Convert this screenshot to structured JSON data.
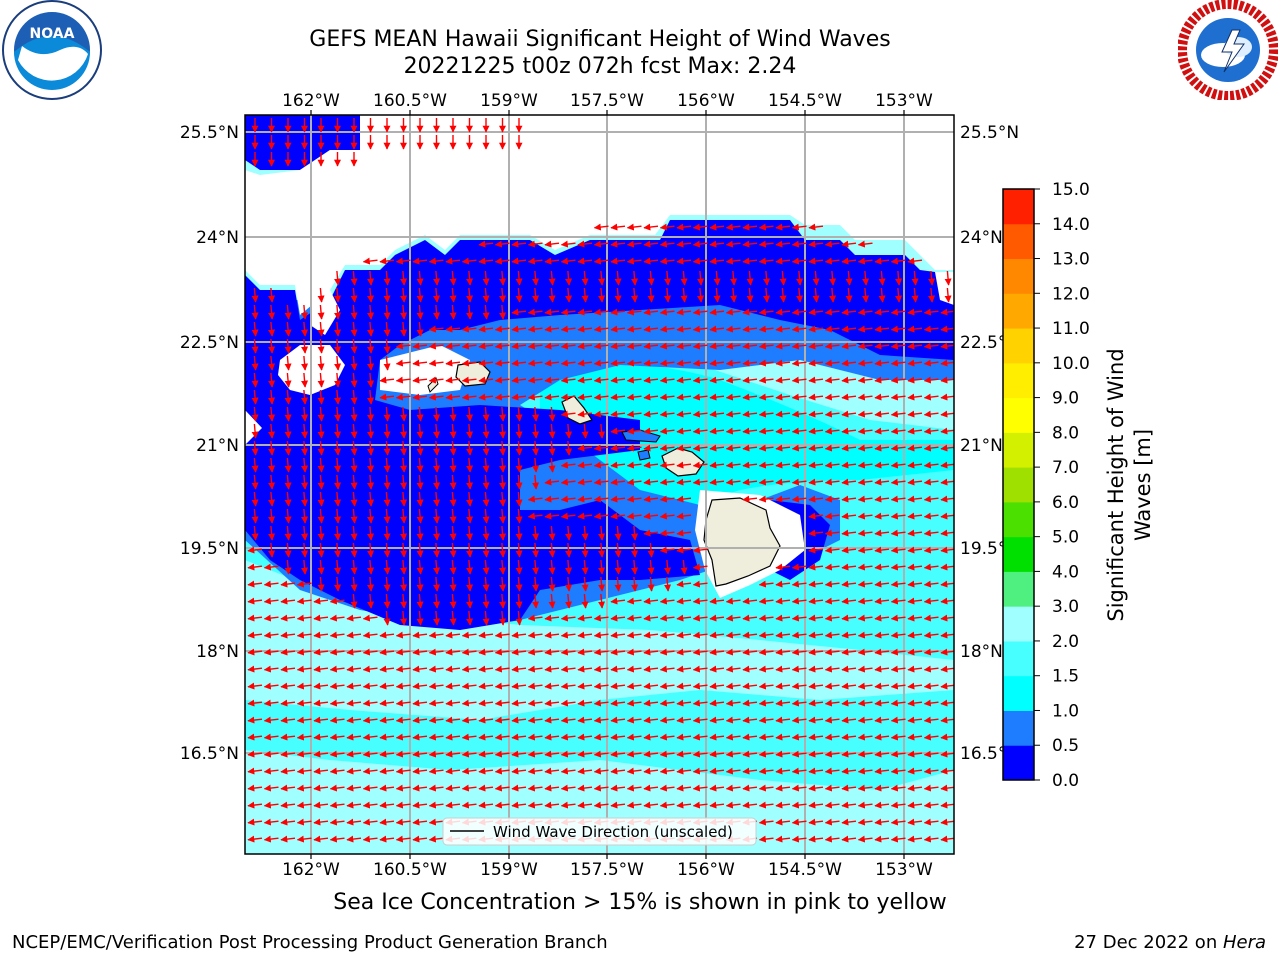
{
  "title": {
    "line1": "GEFS MEAN Hawaii Significant Height of Wind Waves",
    "line2": "20221225 t00z 072h fcst   Max: 2.24"
  },
  "axes": {
    "lon_ticks": [
      "162°W",
      "160.5°W",
      "159°W",
      "157.5°W",
      "156°W",
      "154.5°W",
      "153°W"
    ],
    "lat_ticks_left": [
      "25.5°N",
      "24°N",
      "22.5°N",
      "21°N",
      "19.5°N",
      "18°N",
      "16.5°N"
    ],
    "lat_ticks_right": [
      "25.5°N",
      "24°N",
      "22.5°N",
      "21°N",
      "19.5°N",
      "18°N",
      "16.5°N"
    ]
  },
  "colorbar": {
    "label": "Significant Height of Wind Waves [m]",
    "ticks": [
      "0.0",
      "0.5",
      "1.0",
      "1.5",
      "2.0",
      "3.0",
      "4.0",
      "5.0",
      "6.0",
      "7.0",
      "8.0",
      "9.0",
      "10.0",
      "11.0",
      "12.0",
      "13.0",
      "14.0",
      "15.0"
    ],
    "colors": [
      "#0000ff",
      "#1e7cff",
      "#00ffff",
      "#47ffff",
      "#a0ffff",
      "#50f080",
      "#00e000",
      "#4ce000",
      "#a0e000",
      "#d2f000",
      "#ffff00",
      "#ffee00",
      "#ffd200",
      "#ffa800",
      "#ff8800",
      "#ff5a00",
      "#ff2000"
    ]
  },
  "legend": {
    "label": "Wind Wave Direction (unscaled)"
  },
  "note": "Sea Ice Concentration > 15% is shown in pink to yellow",
  "footer": {
    "left": "NCEP/EMC/Verification Post Processing Product Generation Branch",
    "right_prefix": "27 Dec 2022 on ",
    "right_host": "Hera"
  },
  "logos": {
    "left": "noaa-logo",
    "right": "nws-logo"
  },
  "arrow_color": "#ff0000"
}
